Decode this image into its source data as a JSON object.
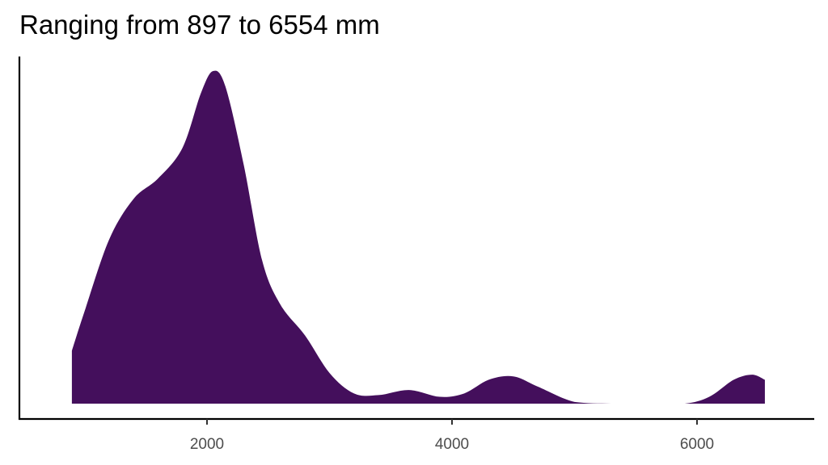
{
  "chart_data": {
    "type": "area",
    "subtype": "density",
    "title": "Ranging from 897 to 6554 mm",
    "xlabel": "",
    "ylabel": "",
    "x_range": [
      897,
      6554
    ],
    "xlim": [
      600,
      6900
    ],
    "x_ticks": [
      2000,
      4000,
      6000
    ],
    "x_tick_labels": [
      "2000",
      "4000",
      "6000"
    ],
    "y_ticks": [],
    "grid": false,
    "legend": "none",
    "fill_color": "#440F5C",
    "series": [
      {
        "name": "density",
        "x": [
          897,
          1000,
          1200,
          1400,
          1600,
          1800,
          1950,
          2050,
          2150,
          2300,
          2450,
          2600,
          2800,
          3000,
          3200,
          3400,
          3650,
          3900,
          4100,
          4300,
          4500,
          4700,
          5000,
          5300,
          5600,
          5900,
          6100,
          6300,
          6450,
          6554
        ],
        "y": [
          0.155,
          0.27,
          0.48,
          0.6,
          0.66,
          0.75,
          0.91,
          0.975,
          0.93,
          0.7,
          0.42,
          0.29,
          0.2,
          0.09,
          0.03,
          0.025,
          0.04,
          0.02,
          0.03,
          0.07,
          0.08,
          0.05,
          0.005,
          0.0,
          0.0,
          0.0,
          0.02,
          0.07,
          0.085,
          0.07
        ]
      }
    ]
  },
  "title": "Ranging from 897 to 6554 mm",
  "axis": {
    "x_tick_labels": [
      "2000",
      "4000",
      "6000"
    ]
  }
}
